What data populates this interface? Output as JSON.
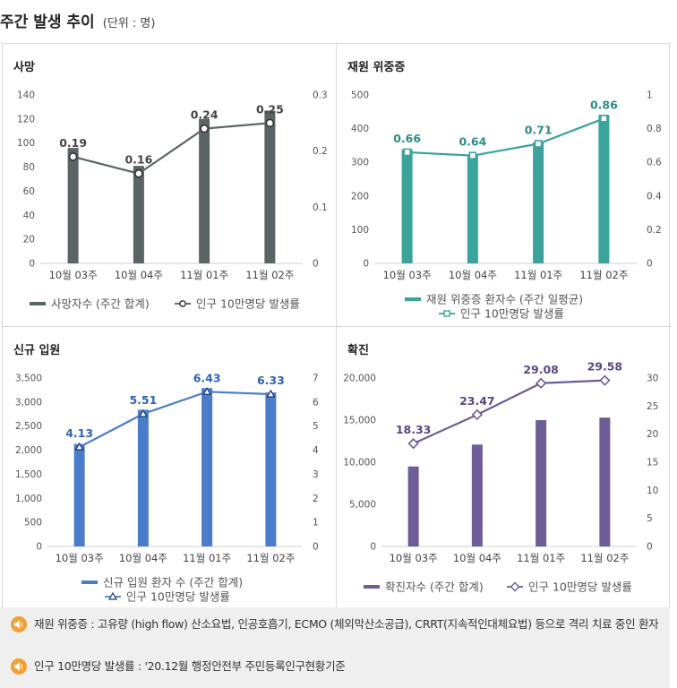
{
  "page": {
    "title": "주간 발생 추이",
    "unit": "(단위 : 명)"
  },
  "colors": {
    "death": "#5b6464",
    "ventilator": "#3aa39b",
    "admission": "#4a7cc9",
    "confirmed": "#6e5c97"
  },
  "chart_data": [
    {
      "type": "bar+line",
      "title": "사망",
      "categories": [
        "10월 03주",
        "10월 04주",
        "11월 01주",
        "11월 02주"
      ],
      "bar": {
        "name": "사망자수 (주간 합계)",
        "values": [
          96,
          81,
          120,
          127
        ]
      },
      "line": {
        "name": "인구 10만명당 발생률",
        "values": [
          0.19,
          0.16,
          0.24,
          0.25
        ],
        "labels": [
          "0.19",
          "0.16",
          "0.24",
          "0.25"
        ]
      },
      "y_left": {
        "min": 0,
        "max": 140,
        "ticks": [
          "0",
          "20",
          "40",
          "60",
          "80",
          "100",
          "120",
          "140"
        ]
      },
      "y_right": {
        "min": 0,
        "max": 0.3,
        "ticks": [
          "0",
          "0.1",
          "0.2",
          "0.3"
        ]
      },
      "legend_position": "bottom"
    },
    {
      "type": "bar+line",
      "title": "재원 위중증",
      "categories": [
        "10월 03주",
        "10월 04주",
        "11월 01주",
        "11월 02주"
      ],
      "bar": {
        "name": "재원 위중증 환자수 (주간 일평균)",
        "values": [
          339,
          322,
          360,
          441
        ]
      },
      "line": {
        "name": "인구 10만명당 발생률",
        "values": [
          0.66,
          0.64,
          0.71,
          0.86
        ],
        "labels": [
          "0.66",
          "0.64",
          "0.71",
          "0.86"
        ]
      },
      "y_left": {
        "min": 0,
        "max": 500,
        "ticks": [
          "0",
          "100",
          "200",
          "300",
          "400",
          "500"
        ]
      },
      "y_right": {
        "min": 0,
        "max": 1,
        "ticks": [
          "0",
          "0.2",
          "0.4",
          "0.6",
          "0.8",
          "1"
        ]
      },
      "legend_position": "bottom"
    },
    {
      "type": "bar+line",
      "title": "신규 입원",
      "categories": [
        "10월 03주",
        "10월 04주",
        "11월 01주",
        "11월 02주"
      ],
      "bar": {
        "name": "신규 입원 환자 수 (주간 합계)",
        "values": [
          2130,
          2840,
          3290,
          3200
        ]
      },
      "line": {
        "name": "인구 10만명당 발생률",
        "values": [
          4.13,
          5.51,
          6.43,
          6.33
        ],
        "labels": [
          "4.13",
          "5.51",
          "6.43",
          "6.33"
        ]
      },
      "y_left": {
        "min": 0,
        "max": 3500,
        "ticks": [
          "0",
          "500",
          "1,000",
          "1,500",
          "2,000",
          "2,500",
          "3,000",
          "3,500"
        ]
      },
      "y_right": {
        "min": 0,
        "max": 7,
        "ticks": [
          "0",
          "1",
          "2",
          "3",
          "4",
          "5",
          "6",
          "7"
        ]
      },
      "legend_position": "bottom"
    },
    {
      "type": "bar+line",
      "title": "확진",
      "categories": [
        "10월 03주",
        "10월 04주",
        "11월 01주",
        "11월 02주"
      ],
      "bar": {
        "name": "확진자수 (주간 합계)",
        "values": [
          9500,
          12100,
          15000,
          15300
        ]
      },
      "line": {
        "name": "인구 10만명당 발생률",
        "values": [
          18.33,
          23.47,
          29.08,
          29.58
        ],
        "labels": [
          "18.33",
          "23.47",
          "29.08",
          "29.58"
        ]
      },
      "y_left": {
        "min": 0,
        "max": 20000,
        "ticks": [
          "0",
          "5,000",
          "10,000",
          "15,000",
          "20,000"
        ]
      },
      "y_right": {
        "min": 0,
        "max": 30,
        "ticks": [
          "0",
          "5",
          "10",
          "15",
          "20",
          "25",
          "30"
        ]
      },
      "legend_position": "bottom"
    }
  ],
  "notes": [
    "재원 위중증 : 고유량 (high flow) 산소요법, 인공호흡기, ECMO (체외막산소공급), CRRT(지속적인대체요법) 등으로 격리 치료 중인 환자",
    "인구 10만명당 발생률 : '20.12월 행정안전부 주민등록인구현황기준"
  ]
}
